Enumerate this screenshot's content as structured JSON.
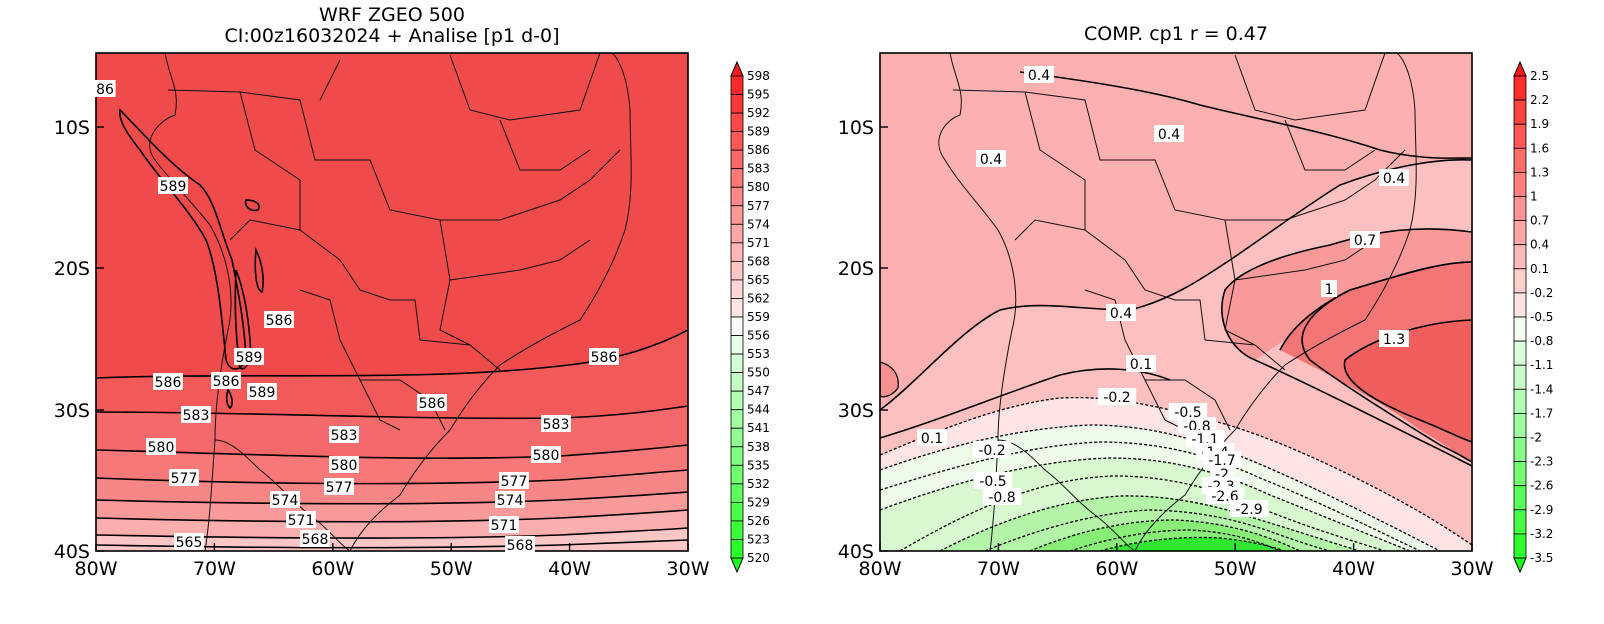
{
  "left_panel": {
    "title_line1": "WRF ZGEO 500",
    "title_line2": "CI:00z16032024 + Analise  [p1 d-0]",
    "x_ticks": [
      "80W",
      "70W",
      "60W",
      "50W",
      "40W",
      "30W"
    ],
    "y_ticks": [
      "10S",
      "20S",
      "30S",
      "40S"
    ],
    "contour_labels": [
      "86",
      "589",
      "586",
      "589",
      "586",
      "589",
      "586",
      "586",
      "586",
      "583",
      "583",
      "583",
      "580",
      "580",
      "580",
      "577",
      "577",
      "577",
      "574",
      "574",
      "571",
      "571",
      "568",
      "568",
      "565"
    ],
    "colorbar": {
      "labels": [
        "598",
        "595",
        "592",
        "589",
        "586",
        "583",
        "580",
        "577",
        "574",
        "571",
        "568",
        "565",
        "562",
        "559",
        "556",
        "553",
        "550",
        "547",
        "544",
        "541",
        "538",
        "535",
        "532",
        "529",
        "526",
        "523",
        "520"
      ],
      "color_high": "#ff1a1a",
      "color_low": "#1aff1a"
    }
  },
  "right_panel": {
    "title": "COMP. cp1   r =   0.47",
    "x_ticks": [
      "80W",
      "70W",
      "60W",
      "50W",
      "40W",
      "30W"
    ],
    "y_ticks": [
      "10S",
      "20S",
      "30S",
      "40S"
    ],
    "contour_labels": [
      "0.4",
      "0.4",
      "0.4",
      "0.4",
      "0.7",
      "1",
      "1.3",
      "0.4",
      "0.1",
      "0.1",
      "-0.2",
      "-0.2",
      "-0.5",
      "-0.8",
      "-1.1",
      "-1.4",
      "-1.7",
      "-2",
      "-2.3",
      "-2.6",
      "-2.9",
      "-0.5",
      "-0.8"
    ],
    "colorbar": {
      "labels": [
        "2.5",
        "2.2",
        "1.9",
        "1.6",
        "1.3",
        "1",
        "0.7",
        "0.4",
        "0.1",
        "-0.2",
        "-0.5",
        "-0.8",
        "-1.1",
        "-1.4",
        "-1.7",
        "-2",
        "-2.3",
        "-2.6",
        "-2.9",
        "-3.2",
        "-3.5"
      ],
      "color_high": "#ff1a1a",
      "color_low": "#1aff1a"
    }
  }
}
